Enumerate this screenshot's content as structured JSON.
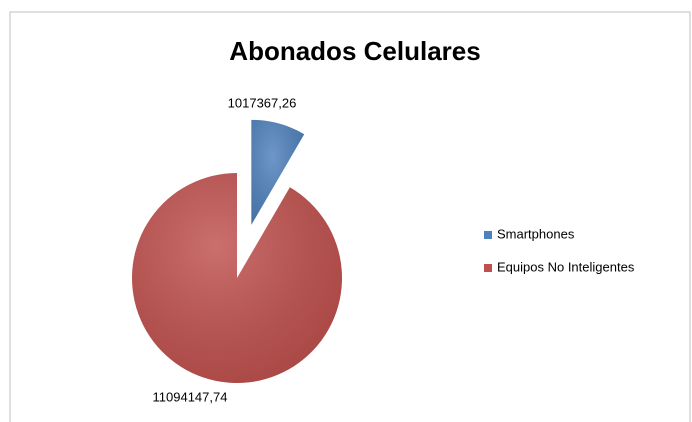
{
  "chart_data": {
    "type": "pie",
    "title": "Abonados Celulares",
    "categories": [
      "Smartphones",
      "Equipos No Inteligentes"
    ],
    "values": [
      1017367.26,
      11094147.74
    ],
    "value_labels": [
      "1017367,26",
      "11094147,74"
    ],
    "colors": [
      "#4f81bd",
      "#c0504d"
    ],
    "legend": "right"
  }
}
